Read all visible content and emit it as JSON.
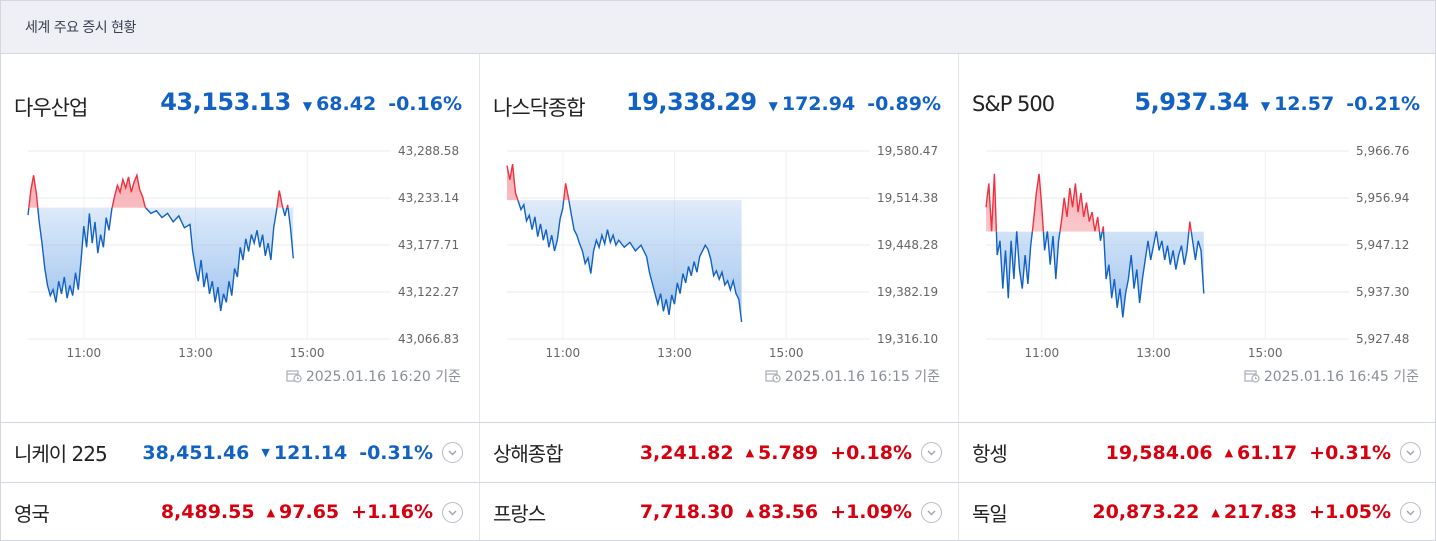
{
  "header": {
    "title": "세계 주요 증시 현황"
  },
  "colors": {
    "up": "#d6000f",
    "down": "#1261c4",
    "up_fill": "#f6a9ae",
    "down_fill": "#9cc2ee"
  },
  "cards": [
    {
      "name": "다우산업",
      "price": "43,153.13",
      "change": "68.42",
      "direction": "down",
      "rate": "-0.16%",
      "timestamp": "2025.01.16 16:20 기준",
      "chart_data": {
        "type": "line",
        "y_ticks": [
          "43,288.58",
          "43,233.14",
          "43,177.71",
          "43,122.27",
          "43,066.83"
        ],
        "ylim": [
          43066.83,
          43288.58
        ],
        "x_ticks": [
          "11:00",
          "13:00",
          "15:00"
        ],
        "x_tick_pos": [
          10.5,
          12.5,
          14.5
        ],
        "xlim": [
          9.5,
          16.0
        ],
        "baseline": 43221.55,
        "points": [
          [
            9.5,
            43213
          ],
          [
            9.55,
            43242
          ],
          [
            9.6,
            43260
          ],
          [
            9.65,
            43238
          ],
          [
            9.7,
            43205
          ],
          [
            9.75,
            43180
          ],
          [
            9.8,
            43150
          ],
          [
            9.85,
            43130
          ],
          [
            9.9,
            43118
          ],
          [
            9.95,
            43125
          ],
          [
            10.0,
            43110
          ],
          [
            10.05,
            43135
          ],
          [
            10.1,
            43120
          ],
          [
            10.15,
            43140
          ],
          [
            10.2,
            43115
          ],
          [
            10.25,
            43130
          ],
          [
            10.3,
            43118
          ],
          [
            10.35,
            43145
          ],
          [
            10.4,
            43125
          ],
          [
            10.45,
            43160
          ],
          [
            10.5,
            43200
          ],
          [
            10.55,
            43175
          ],
          [
            10.6,
            43215
          ],
          [
            10.65,
            43180
          ],
          [
            10.7,
            43205
          ],
          [
            10.75,
            43168
          ],
          [
            10.8,
            43190
          ],
          [
            10.85,
            43175
          ],
          [
            10.9,
            43210
          ],
          [
            10.95,
            43195
          ],
          [
            11.0,
            43220
          ],
          [
            11.05,
            43235
          ],
          [
            11.1,
            43248
          ],
          [
            11.15,
            43240
          ],
          [
            11.2,
            43255
          ],
          [
            11.25,
            43245
          ],
          [
            11.3,
            43258
          ],
          [
            11.35,
            43240
          ],
          [
            11.4,
            43252
          ],
          [
            11.45,
            43260
          ],
          [
            11.5,
            43243
          ],
          [
            11.55,
            43235
          ],
          [
            11.6,
            43222
          ],
          [
            11.7,
            43215
          ],
          [
            11.8,
            43218
          ],
          [
            11.9,
            43210
          ],
          [
            12.0,
            43215
          ],
          [
            12.1,
            43205
          ],
          [
            12.2,
            43212
          ],
          [
            12.3,
            43198
          ],
          [
            12.4,
            43202
          ],
          [
            12.45,
            43170
          ],
          [
            12.5,
            43150
          ],
          [
            12.55,
            43135
          ],
          [
            12.6,
            43160
          ],
          [
            12.65,
            43128
          ],
          [
            12.7,
            43145
          ],
          [
            12.75,
            43120
          ],
          [
            12.8,
            43135
          ],
          [
            12.85,
            43110
          ],
          [
            12.9,
            43128
          ],
          [
            12.95,
            43100
          ],
          [
            13.0,
            43120
          ],
          [
            13.05,
            43110
          ],
          [
            13.1,
            43135
          ],
          [
            13.15,
            43118
          ],
          [
            13.2,
            43150
          ],
          [
            13.25,
            43140
          ],
          [
            13.3,
            43175
          ],
          [
            13.35,
            43160
          ],
          [
            13.4,
            43185
          ],
          [
            13.45,
            43170
          ],
          [
            13.5,
            43190
          ],
          [
            13.55,
            43180
          ],
          [
            13.6,
            43195
          ],
          [
            13.65,
            43175
          ],
          [
            13.7,
            43190
          ],
          [
            13.75,
            43165
          ],
          [
            13.8,
            43180
          ],
          [
            13.85,
            43160
          ],
          [
            13.9,
            43198
          ],
          [
            13.95,
            43218
          ],
          [
            14.0,
            43242
          ],
          [
            14.05,
            43225
          ],
          [
            14.1,
            43212
          ],
          [
            14.15,
            43225
          ],
          [
            14.2,
            43198
          ],
          [
            14.25,
            43162
          ]
        ]
      }
    },
    {
      "name": "나스닥종합",
      "price": "19,338.29",
      "change": "172.94",
      "direction": "down",
      "rate": "-0.89%",
      "timestamp": "2025.01.16 16:15 기준",
      "chart_data": {
        "type": "line",
        "y_ticks": [
          "19,580.47",
          "19,514.38",
          "19,448.28",
          "19,382.19",
          "19,316.10"
        ],
        "ylim": [
          19316.1,
          19580.47
        ],
        "x_ticks": [
          "11:00",
          "13:00",
          "15:00"
        ],
        "x_tick_pos": [
          10.5,
          12.5,
          14.5
        ],
        "xlim": [
          9.5,
          16.0
        ],
        "baseline": 19511.23,
        "points": [
          [
            9.5,
            19560
          ],
          [
            9.55,
            19540
          ],
          [
            9.6,
            19562
          ],
          [
            9.65,
            19522
          ],
          [
            9.7,
            19510
          ],
          [
            9.75,
            19498
          ],
          [
            9.8,
            19505
          ],
          [
            9.85,
            19482
          ],
          [
            9.9,
            19490
          ],
          [
            9.95,
            19470
          ],
          [
            10.0,
            19488
          ],
          [
            10.05,
            19460
          ],
          [
            10.1,
            19478
          ],
          [
            10.15,
            19455
          ],
          [
            10.2,
            19470
          ],
          [
            10.25,
            19445
          ],
          [
            10.3,
            19462
          ],
          [
            10.35,
            19440
          ],
          [
            10.4,
            19455
          ],
          [
            10.45,
            19485
          ],
          [
            10.5,
            19500
          ],
          [
            10.55,
            19535
          ],
          [
            10.6,
            19515
          ],
          [
            10.65,
            19492
          ],
          [
            10.7,
            19470
          ],
          [
            10.75,
            19462
          ],
          [
            10.8,
            19450
          ],
          [
            10.85,
            19440
          ],
          [
            10.9,
            19422
          ],
          [
            10.95,
            19430
          ],
          [
            11.0,
            19408
          ],
          [
            11.05,
            19440
          ],
          [
            11.1,
            19455
          ],
          [
            11.15,
            19445
          ],
          [
            11.2,
            19462
          ],
          [
            11.25,
            19450
          ],
          [
            11.3,
            19470
          ],
          [
            11.35,
            19452
          ],
          [
            11.4,
            19462
          ],
          [
            11.45,
            19448
          ],
          [
            11.5,
            19455
          ],
          [
            11.6,
            19445
          ],
          [
            11.7,
            19452
          ],
          [
            11.8,
            19440
          ],
          [
            11.9,
            19448
          ],
          [
            12.0,
            19432
          ],
          [
            12.05,
            19410
          ],
          [
            12.1,
            19395
          ],
          [
            12.15,
            19380
          ],
          [
            12.2,
            19365
          ],
          [
            12.25,
            19380
          ],
          [
            12.3,
            19355
          ],
          [
            12.35,
            19372
          ],
          [
            12.4,
            19350
          ],
          [
            12.45,
            19378
          ],
          [
            12.5,
            19365
          ],
          [
            12.55,
            19395
          ],
          [
            12.6,
            19380
          ],
          [
            12.65,
            19408
          ],
          [
            12.7,
            19395
          ],
          [
            12.75,
            19418
          ],
          [
            12.8,
            19405
          ],
          [
            12.85,
            19425
          ],
          [
            12.9,
            19410
          ],
          [
            12.95,
            19432
          ],
          [
            13.0,
            19440
          ],
          [
            13.05,
            19448
          ],
          [
            13.1,
            19442
          ],
          [
            13.15,
            19428
          ],
          [
            13.2,
            19405
          ],
          [
            13.25,
            19412
          ],
          [
            13.3,
            19400
          ],
          [
            13.35,
            19410
          ],
          [
            13.4,
            19392
          ],
          [
            13.45,
            19398
          ],
          [
            13.5,
            19385
          ],
          [
            13.55,
            19398
          ],
          [
            13.6,
            19380
          ],
          [
            13.65,
            19372
          ],
          [
            13.7,
            19340
          ]
        ]
      }
    },
    {
      "name": "S&P 500",
      "price": "5,937.34",
      "change": "12.57",
      "direction": "down",
      "rate": "-0.21%",
      "timestamp": "2025.01.16 16:45 기준",
      "chart_data": {
        "type": "line",
        "y_ticks": [
          "5,966.76",
          "5,956.94",
          "5,947.12",
          "5,937.30",
          "5,927.48"
        ],
        "ylim": [
          5927.48,
          5966.76
        ],
        "x_ticks": [
          "11:00",
          "13:00",
          "15:00"
        ],
        "x_tick_pos": [
          10.5,
          12.5,
          14.5
        ],
        "xlim": [
          9.5,
          16.0
        ],
        "baseline": 5949.91,
        "points": [
          [
            9.5,
            5955
          ],
          [
            9.55,
            5960
          ],
          [
            9.6,
            5950
          ],
          [
            9.65,
            5962
          ],
          [
            9.7,
            5945
          ],
          [
            9.75,
            5948
          ],
          [
            9.8,
            5938
          ],
          [
            9.85,
            5946
          ],
          [
            9.9,
            5936
          ],
          [
            9.95,
            5948
          ],
          [
            10.0,
            5940
          ],
          [
            10.05,
            5950
          ],
          [
            10.1,
            5942
          ],
          [
            10.15,
            5938
          ],
          [
            10.2,
            5945
          ],
          [
            10.25,
            5939
          ],
          [
            10.3,
            5947
          ],
          [
            10.35,
            5952
          ],
          [
            10.4,
            5958
          ],
          [
            10.45,
            5962
          ],
          [
            10.5,
            5955
          ],
          [
            10.55,
            5946
          ],
          [
            10.6,
            5950
          ],
          [
            10.65,
            5943
          ],
          [
            10.7,
            5949
          ],
          [
            10.75,
            5940
          ],
          [
            10.8,
            5948
          ],
          [
            10.85,
            5952
          ],
          [
            10.9,
            5957
          ],
          [
            10.95,
            5953
          ],
          [
            11.0,
            5959
          ],
          [
            11.05,
            5955
          ],
          [
            11.1,
            5960
          ],
          [
            11.15,
            5954
          ],
          [
            11.2,
            5958
          ],
          [
            11.25,
            5953
          ],
          [
            11.3,
            5956
          ],
          [
            11.35,
            5952
          ],
          [
            11.4,
            5954
          ],
          [
            11.45,
            5950
          ],
          [
            11.5,
            5953
          ],
          [
            11.55,
            5948
          ],
          [
            11.6,
            5951
          ],
          [
            11.65,
            5940
          ],
          [
            11.7,
            5943
          ],
          [
            11.75,
            5936
          ],
          [
            11.8,
            5940
          ],
          [
            11.85,
            5934
          ],
          [
            11.9,
            5938
          ],
          [
            11.95,
            5932
          ],
          [
            12.0,
            5937
          ],
          [
            12.05,
            5940
          ],
          [
            12.1,
            5945
          ],
          [
            12.15,
            5938
          ],
          [
            12.2,
            5942
          ],
          [
            12.25,
            5935
          ],
          [
            12.3,
            5940
          ],
          [
            12.35,
            5944
          ],
          [
            12.4,
            5948
          ],
          [
            12.45,
            5944
          ],
          [
            12.5,
            5947
          ],
          [
            12.55,
            5950
          ],
          [
            12.6,
            5946
          ],
          [
            12.65,
            5948
          ],
          [
            12.7,
            5944
          ],
          [
            12.75,
            5947
          ],
          [
            12.8,
            5943
          ],
          [
            12.85,
            5946
          ],
          [
            12.9,
            5942
          ],
          [
            12.95,
            5945
          ],
          [
            13.0,
            5947
          ],
          [
            13.05,
            5943
          ],
          [
            13.1,
            5946
          ],
          [
            13.15,
            5952
          ],
          [
            13.2,
            5948
          ],
          [
            13.25,
            5944
          ],
          [
            13.3,
            5948
          ],
          [
            13.35,
            5946
          ],
          [
            13.4,
            5937
          ]
        ]
      }
    }
  ],
  "rows": [
    [
      {
        "name": "니케이 225",
        "price": "38,451.46",
        "change": "121.14",
        "direction": "down",
        "rate": "-0.31%"
      },
      {
        "name": "상해종합",
        "price": "3,241.82",
        "change": "5.789",
        "direction": "up",
        "rate": "+0.18%"
      },
      {
        "name": "항셍",
        "price": "19,584.06",
        "change": "61.17",
        "direction": "up",
        "rate": "+0.31%"
      }
    ],
    [
      {
        "name": "영국",
        "price": "8,489.55",
        "change": "97.65",
        "direction": "up",
        "rate": "+1.16%"
      },
      {
        "name": "프랑스",
        "price": "7,718.30",
        "change": "83.56",
        "direction": "up",
        "rate": "+1.09%"
      },
      {
        "name": "독일",
        "price": "20,873.22",
        "change": "217.83",
        "direction": "up",
        "rate": "+1.05%"
      }
    ]
  ]
}
